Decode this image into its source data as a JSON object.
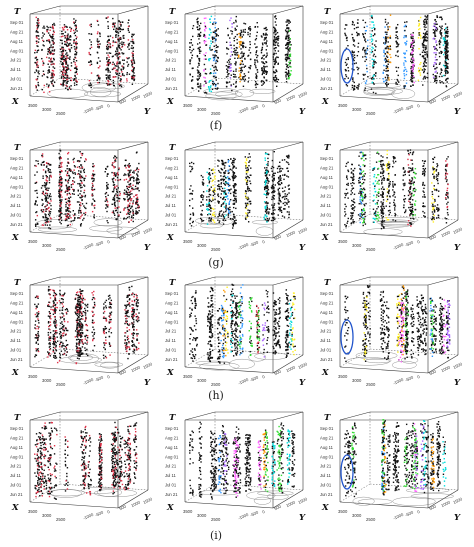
{
  "figure": {
    "row_labels": [
      "(f)",
      "(g)",
      "(h)",
      "(i)"
    ]
  },
  "chart_data": {
    "type": "scatter",
    "description_axes": {
      "x": "X",
      "y": "Y",
      "t": "T"
    },
    "t_ticks_set_a": [
      "Sep 01",
      "Aug 21",
      "Aug 11",
      "Aug 01",
      "Jul 21",
      "Jul 11",
      "Jul 01",
      "Jun 21"
    ],
    "t_ticks_set_b": [
      "Sep 01",
      "Aug 21",
      "Aug 11",
      "Aug 01",
      "Jul 21",
      "Jul 11",
      "Jul 01",
      "Jun 21"
    ],
    "x_ticks": [
      "3500",
      "3000",
      "2500"
    ],
    "y_ticks": [
      "-1000",
      "-500",
      "0",
      "500",
      "1000",
      "1500"
    ],
    "colors": {
      "base": "#111111",
      "highlight": "#e0334a",
      "clusters": [
        "#e0334a",
        "#ff66ff",
        "#33dd33",
        "#ffee22",
        "#3399ff",
        "#00dddd",
        "#aa66ff",
        "#ff9900"
      ]
    },
    "panels": [
      {
        "row": "(f)",
        "col": 1,
        "style": "red",
        "circled": false
      },
      {
        "row": "(f)",
        "col": 2,
        "style": "multi",
        "circled": false
      },
      {
        "row": "(f)",
        "col": 3,
        "style": "multi",
        "circled": true
      },
      {
        "row": "(g)",
        "col": 1,
        "style": "red",
        "circled": false
      },
      {
        "row": "(g)",
        "col": 2,
        "style": "multi",
        "circled": false
      },
      {
        "row": "(g)",
        "col": 3,
        "style": "multi",
        "circled": false
      },
      {
        "row": "(h)",
        "col": 1,
        "style": "red",
        "circled": false
      },
      {
        "row": "(h)",
        "col": 2,
        "style": "multi",
        "circled": false
      },
      {
        "row": "(h)",
        "col": 3,
        "style": "multi",
        "circled": true
      },
      {
        "row": "(i)",
        "col": 1,
        "style": "red",
        "circled": false
      },
      {
        "row": "(i)",
        "col": 2,
        "style": "multi",
        "circled": false
      },
      {
        "row": "(i)",
        "col": 3,
        "style": "multi",
        "circled": true
      }
    ]
  }
}
